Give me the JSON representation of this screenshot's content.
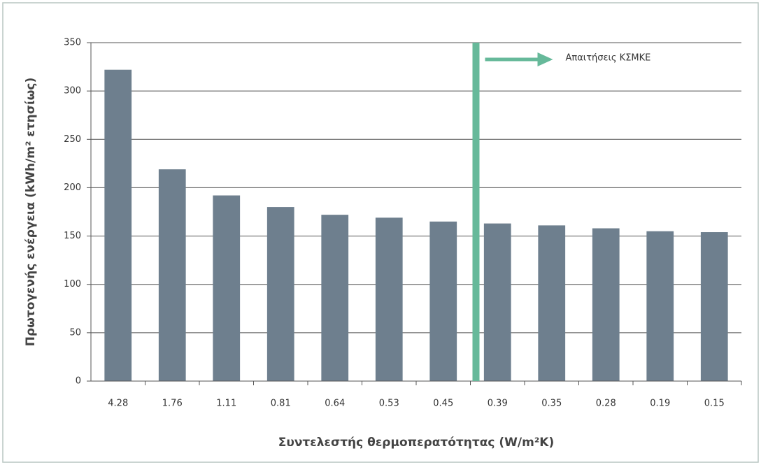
{
  "chart_data": {
    "type": "bar",
    "xlabel": "Συντελεστής θερμοπερατότητας (W/m²K)",
    "ylabel": "Πρωτογενής ενέργεια (kWh/m² ετησίως)",
    "annotation": "Απαιτήσεις ΚΣΜΚΕ",
    "categories": [
      "4.28",
      "1.76",
      "1.11",
      "0.81",
      "0.64",
      "0.53",
      "0.45",
      "0.39",
      "0.35",
      "0.28",
      "0.19",
      "0.15"
    ],
    "values": [
      322,
      219,
      192,
      180,
      172,
      169,
      165,
      163,
      161,
      158,
      155,
      154
    ],
    "color": "#6e7f8e",
    "annotation_color": "#66b99a",
    "ylim": [
      0,
      350
    ],
    "yticks": [
      0,
      50,
      100,
      150,
      200,
      250,
      300,
      350
    ],
    "grid": true
  }
}
